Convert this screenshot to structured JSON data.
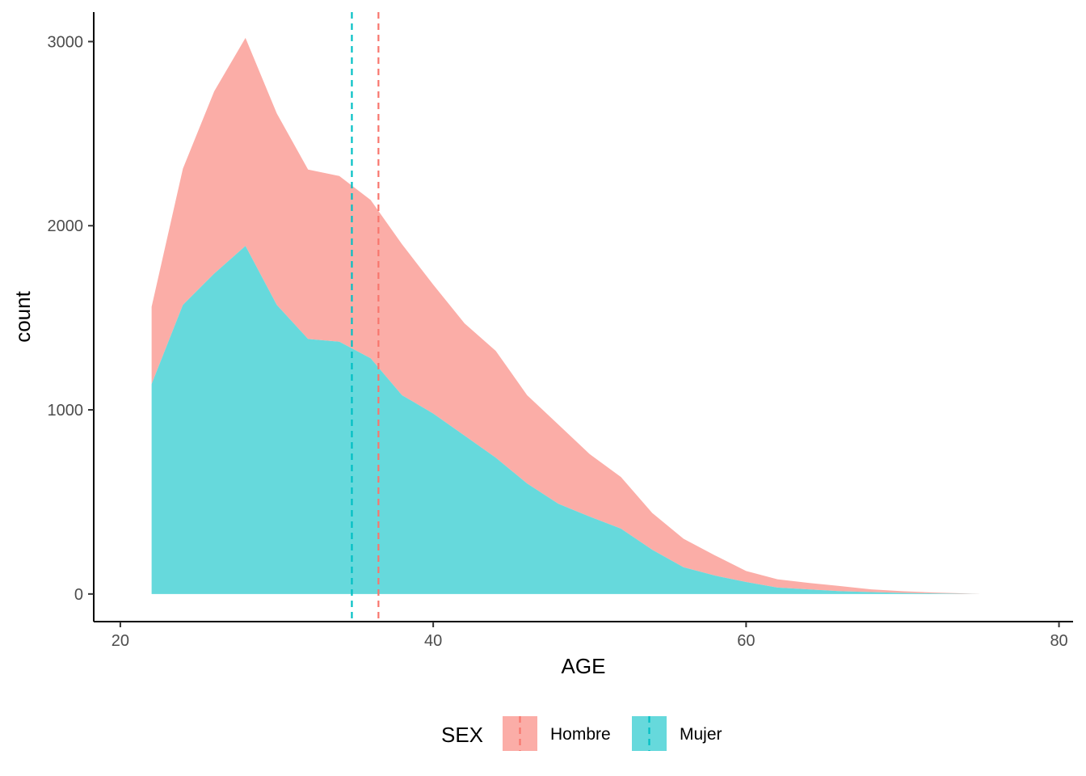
{
  "chart_data": {
    "type": "area",
    "stacked": true,
    "xlabel": "AGE",
    "ylabel": "count",
    "xlim": [
      18.3,
      80.9
    ],
    "ylim": [
      -150,
      3160
    ],
    "x_ticks": [
      20,
      40,
      60,
      80
    ],
    "y_ticks": [
      0,
      1000,
      2000,
      3000
    ],
    "grid": false,
    "legend": {
      "title": "SEX",
      "position": "bottom",
      "entries": [
        "Hombre",
        "Mujer"
      ]
    },
    "colors": {
      "Hombre": "#F8766D",
      "Mujer": "#00BFC4",
      "fill_alpha": 0.6
    },
    "x": [
      22,
      24,
      26,
      28,
      30,
      32,
      34,
      36,
      38,
      40,
      42,
      44,
      46,
      48,
      50,
      52,
      54,
      56,
      58,
      60,
      62,
      64,
      66,
      68,
      70,
      72,
      74,
      75
    ],
    "series": [
      {
        "name": "Mujer",
        "values": [
          1140,
          1570,
          1740,
          1890,
          1570,
          1385,
          1370,
          1280,
          1080,
          980,
          860,
          740,
          600,
          490,
          420,
          355,
          240,
          145,
          100,
          65,
          35,
          25,
          15,
          10,
          6,
          3,
          1,
          0
        ]
      },
      {
        "name": "Hombre",
        "values": [
          420,
          740,
          990,
          1130,
          1040,
          920,
          900,
          860,
          820,
          700,
          610,
          580,
          480,
          430,
          340,
          280,
          200,
          155,
          110,
          60,
          45,
          35,
          28,
          15,
          9,
          5,
          2,
          0
        ]
      }
    ],
    "vlines": [
      {
        "series": "Mujer",
        "x": 34.8,
        "style": "dashed"
      },
      {
        "series": "Hombre",
        "x": 36.5,
        "style": "dashed"
      }
    ]
  }
}
